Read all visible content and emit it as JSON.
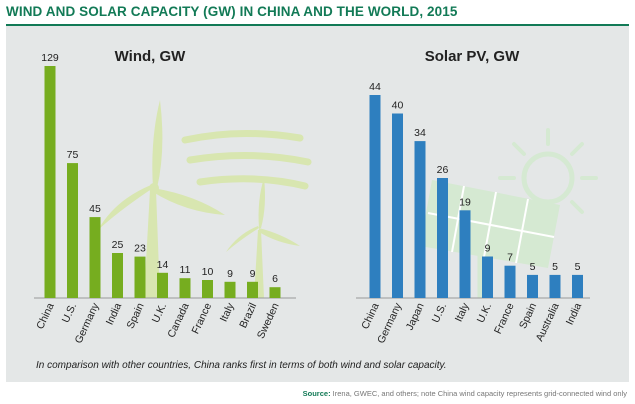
{
  "header": {
    "title": "WIND AND SOLAR CAPACITY (GW) IN CHINA AND THE WORLD, 2015"
  },
  "footer": {
    "note": "In comparison with other countries, China ranks first in terms of both wind and solar capacity.",
    "source_label": "Source:",
    "source_text": "Irena, GWEC, and others; note China wind capacity represents grid-connected wind only"
  },
  "colors": {
    "title": "#127a56",
    "wind_bar": "#76ad1f",
    "solar_bar": "#2e7fbf",
    "panel": "#e4e7e7",
    "decor_wind": "#d8e6b0",
    "decor_solar": "#d5e9d2"
  },
  "chart_data": [
    {
      "type": "bar",
      "title": "Wind, GW",
      "categories": [
        "China",
        "U.S.",
        "Germany",
        "India",
        "Spain",
        "U.K.",
        "Canada",
        "France",
        "Italy",
        "Brazil",
        "Sweden"
      ],
      "values": [
        129,
        75,
        45,
        25,
        23,
        14,
        11,
        10,
        9,
        9,
        6
      ],
      "xlabel": "",
      "ylabel": "GW",
      "ylim": [
        0,
        129
      ],
      "grid": false
    },
    {
      "type": "bar",
      "title": "Solar PV, GW",
      "categories": [
        "China",
        "Germany",
        "Japan",
        "U.S.",
        "Italy",
        "U.K.",
        "France",
        "Spain",
        "Australia",
        "India"
      ],
      "values": [
        44,
        40,
        34,
        26,
        19,
        9,
        7,
        5,
        5,
        5
      ],
      "xlabel": "",
      "ylabel": "GW",
      "ylim": [
        0,
        44
      ],
      "grid": false
    }
  ]
}
